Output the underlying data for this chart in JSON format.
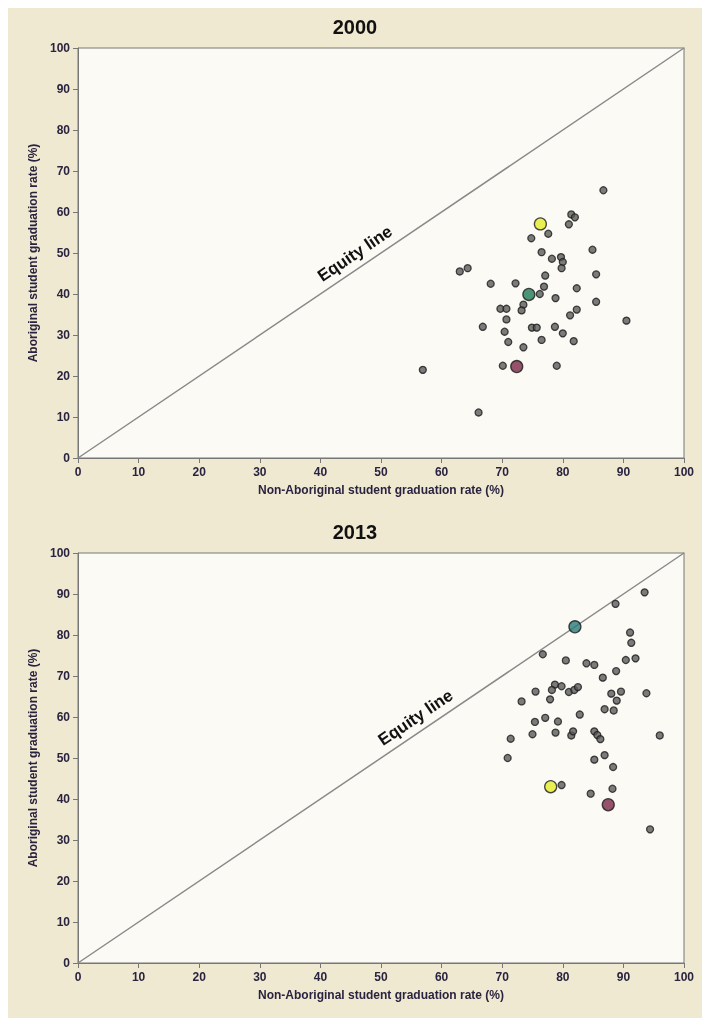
{
  "chart_data": [
    {
      "type": "scatter",
      "title": "2000",
      "xlabel": "Non-Aboriginal student graduation rate (%)",
      "ylabel": "Aboriginal student graduation rate (%)",
      "xlim": [
        0,
        100
      ],
      "xticks": [
        0,
        10,
        20,
        30,
        40,
        50,
        60,
        70,
        80,
        90,
        100
      ],
      "ylim": [
        0,
        100
      ],
      "yticks": [
        0,
        10,
        20,
        30,
        40,
        50,
        60,
        70,
        80,
        90,
        100
      ],
      "grid": false,
      "marker": "circle",
      "annotations": [
        {
          "text": "Equity line",
          "x": 47,
          "y": 47
        }
      ],
      "series": [
        {
          "color": "#5b5b5b",
          "x": [
            86.7,
            81.4,
            82.0,
            81.0,
            77.6,
            74.8,
            84.9,
            76.5,
            78.2,
            79.7,
            80.0,
            79.8,
            63.0,
            64.3,
            85.5,
            77.1,
            68.1,
            72.2,
            76.9,
            82.3,
            76.2,
            78.8,
            85.5,
            73.5,
            69.7,
            70.7,
            73.2,
            82.3,
            81.2,
            90.5,
            70.7,
            66.8,
            74.9,
            75.7,
            78.7,
            70.4,
            80.0,
            76.5,
            81.8,
            71.0,
            73.5,
            70.1,
            79.0,
            56.9,
            66.1
          ],
          "values": [
            65.3,
            59.4,
            58.7,
            57.0,
            54.7,
            53.6,
            50.8,
            50.2,
            48.6,
            49.0,
            47.8,
            46.3,
            45.5,
            46.3,
            44.8,
            44.5,
            42.5,
            42.6,
            41.8,
            41.4,
            40.0,
            39.0,
            38.1,
            37.4,
            36.4,
            36.4,
            36.0,
            36.2,
            34.8,
            33.5,
            33.8,
            32.0,
            31.8,
            31.8,
            32.0,
            30.8,
            30.4,
            28.8,
            28.5,
            28.3,
            27.0,
            22.5,
            22.5,
            21.5,
            11.1
          ]
        },
        {
          "color": "#e6ec2a",
          "x": [
            76.3
          ],
          "values": [
            57.1
          ]
        },
        {
          "color": "#1f7a55",
          "x": [
            74.4
          ],
          "values": [
            39.9
          ]
        },
        {
          "color": "#7a2848",
          "x": [
            72.4
          ],
          "values": [
            22.3
          ]
        },
        {
          "type": "line",
          "color": "#8a8a8a",
          "line_style": "solid",
          "marker": "none",
          "x": [
            0,
            100
          ],
          "values": [
            0,
            100
          ]
        }
      ]
    },
    {
      "type": "scatter",
      "title": "2013",
      "xlabel": "Non-Aboriginal student graduation rate (%)",
      "ylabel": "Aboriginal student graduation rate (%)",
      "xlim": [
        0,
        100
      ],
      "xticks": [
        0,
        10,
        20,
        30,
        40,
        50,
        60,
        70,
        80,
        90,
        100
      ],
      "ylim": [
        0,
        100
      ],
      "yticks": [
        0,
        10,
        20,
        30,
        40,
        50,
        60,
        70,
        80,
        90,
        100
      ],
      "grid": false,
      "marker": "circle",
      "annotations": [
        {
          "text": "Equity line",
          "x": 57,
          "y": 57
        }
      ],
      "series": [
        {
          "color": "#5b5b5b",
          "x": [
            93.5,
            88.7,
            91.1,
            91.3,
            76.7,
            80.5,
            83.9,
            85.2,
            90.4,
            92.0,
            88.8,
            86.6,
            78.7,
            79.8,
            78.2,
            81.0,
            81.9,
            82.5,
            75.5,
            88.0,
            89.6,
            93.8,
            73.2,
            77.9,
            88.9,
            86.9,
            88.4,
            82.8,
            75.4,
            77.1,
            79.2,
            71.4,
            75.0,
            78.8,
            81.4,
            81.7,
            85.2,
            85.7,
            86.2,
            96.0,
            70.9,
            85.2,
            86.9,
            88.3,
            79.8,
            84.6,
            88.2,
            94.4
          ],
          "values": [
            90.4,
            87.6,
            80.6,
            78.1,
            75.3,
            73.8,
            73.1,
            72.7,
            73.9,
            74.3,
            71.2,
            69.6,
            67.9,
            67.5,
            66.6,
            66.1,
            66.6,
            67.3,
            66.2,
            65.7,
            66.2,
            65.8,
            63.8,
            64.3,
            64.0,
            61.9,
            61.6,
            60.6,
            58.8,
            59.8,
            58.9,
            54.7,
            55.8,
            56.2,
            55.5,
            56.5,
            56.5,
            55.6,
            54.6,
            55.5,
            50.0,
            49.6,
            50.7,
            47.8,
            43.4,
            41.3,
            42.5,
            32.6
          ]
        },
        {
          "color": "#e6ec2a",
          "x": [
            78.0
          ],
          "values": [
            43.0
          ]
        },
        {
          "color": "#2a7a7a",
          "x": [
            82.0
          ],
          "values": [
            82.0
          ]
        },
        {
          "color": "#7a2848",
          "x": [
            87.5
          ],
          "values": [
            38.6
          ]
        },
        {
          "type": "line",
          "color": "#8a8a8a",
          "line_style": "solid",
          "marker": "none",
          "x": [
            0,
            100
          ],
          "values": [
            0,
            100
          ]
        }
      ]
    }
  ]
}
